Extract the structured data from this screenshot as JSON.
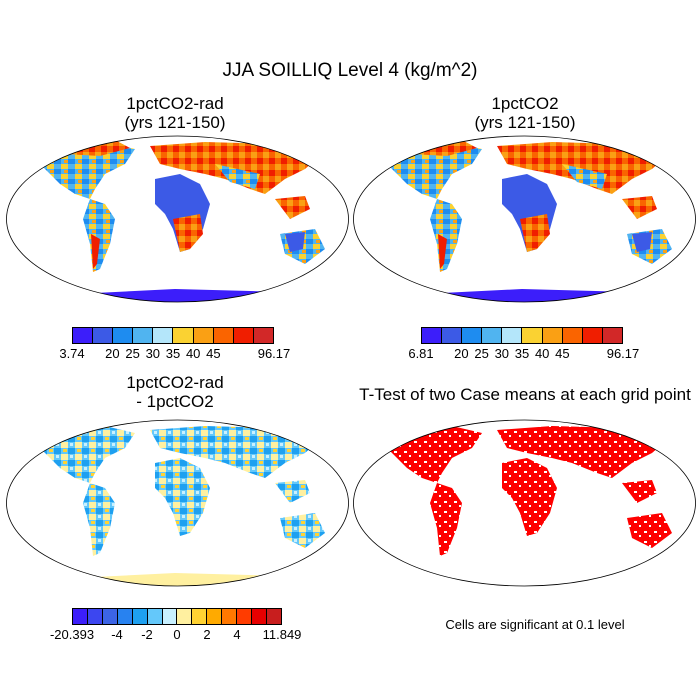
{
  "title": "JJA SOILLIQ Level 4 (kg/m^2)",
  "panels": [
    {
      "id": "p1",
      "title_line1": "1pctCO2-rad",
      "title_line2": "(yrs 121-150)"
    },
    {
      "id": "p2",
      "title_line1": "1pctCO2",
      "title_line2": "(yrs 121-150)"
    },
    {
      "id": "p3",
      "title_line1": "1pctCO2-rad",
      "title_line2": "- 1pctCO2"
    },
    {
      "id": "p4",
      "title_line1": "T-Test of two Case means at each grid point",
      "title_line2": ""
    }
  ],
  "colorbars": [
    {
      "id": "cb1",
      "colors": [
        "#3c1efa",
        "#3c5ae6",
        "#1e8cf0",
        "#50b4f0",
        "#b4e6fa",
        "#fad232",
        "#faa014",
        "#fa6400",
        "#f01e00",
        "#d22828"
      ],
      "labels": [
        "3.74",
        "20",
        "25",
        "30",
        "35",
        "40",
        "45",
        "96.17"
      ],
      "label_positions": [
        0,
        2,
        3,
        4,
        5,
        6,
        7,
        10
      ]
    },
    {
      "id": "cb2",
      "colors": [
        "#3c1efa",
        "#3c5ae6",
        "#1e8cf0",
        "#50b4f0",
        "#b4e6fa",
        "#fad232",
        "#faa014",
        "#fa6400",
        "#f01e00",
        "#d22828"
      ],
      "labels": [
        "6.81",
        "20",
        "25",
        "30",
        "35",
        "40",
        "45",
        "96.17"
      ],
      "label_positions": [
        0,
        2,
        3,
        4,
        5,
        6,
        7,
        10
      ]
    },
    {
      "id": "cb3",
      "colors": [
        "#3c1efa",
        "#3c46f0",
        "#3c64e6",
        "#2882f0",
        "#1ea0f0",
        "#64c8fa",
        "#c8f0ff",
        "#fff0a0",
        "#ffd232",
        "#ffaa00",
        "#ff7800",
        "#ff3c00",
        "#e60000",
        "#c81e1e"
      ],
      "labels": [
        "-20.393",
        "-4",
        "-2",
        "0",
        "2",
        "4",
        "11.849"
      ],
      "label_positions": [
        0,
        3,
        5,
        7,
        9,
        11,
        14
      ]
    }
  ],
  "ttest_note": "Cells are significant at 0.1 level",
  "ttest_color": "#ff0000"
}
